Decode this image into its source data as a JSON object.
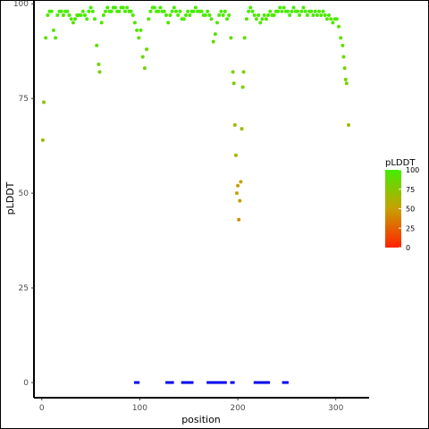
{
  "chart_data": {
    "type": "scatter",
    "xlabel": "position",
    "ylabel": "pLDDT",
    "xlim": [
      -8,
      334
    ],
    "ylim": [
      -4,
      101
    ],
    "x_ticks": [
      0,
      100,
      200,
      300
    ],
    "y_ticks": [
      0,
      25,
      50,
      75,
      100
    ],
    "grid": false,
    "color_scale": {
      "title": "pLDDT",
      "low_color": "#ff2200",
      "mid_color": "#c8a000",
      "high_color": "#44ee00",
      "ticks": [
        0,
        25,
        50,
        75,
        100
      ],
      "placement": "right"
    },
    "marker_color": "#0000ee",
    "series": [
      {
        "points": [
          [
            1,
            64
          ],
          [
            2,
            74
          ],
          [
            4,
            91
          ],
          [
            6,
            97
          ],
          [
            8,
            98
          ],
          [
            10,
            98
          ],
          [
            12,
            93
          ],
          [
            14,
            91
          ],
          [
            16,
            97
          ],
          [
            18,
            98
          ],
          [
            20,
            98
          ],
          [
            22,
            97
          ],
          [
            24,
            98
          ],
          [
            26,
            98
          ],
          [
            28,
            97
          ],
          [
            30,
            96
          ],
          [
            32,
            95
          ],
          [
            34,
            96
          ],
          [
            36,
            97
          ],
          [
            38,
            97
          ],
          [
            40,
            97
          ],
          [
            42,
            98
          ],
          [
            44,
            97
          ],
          [
            46,
            96
          ],
          [
            48,
            98
          ],
          [
            50,
            99
          ],
          [
            52,
            98
          ],
          [
            54,
            96
          ],
          [
            56,
            89
          ],
          [
            58,
            84
          ],
          [
            59,
            82
          ],
          [
            61,
            95
          ],
          [
            63,
            97
          ],
          [
            65,
            98
          ],
          [
            67,
            99
          ],
          [
            69,
            98
          ],
          [
            71,
            98
          ],
          [
            73,
            99
          ],
          [
            75,
            99
          ],
          [
            77,
            98
          ],
          [
            79,
            98
          ],
          [
            81,
            99
          ],
          [
            83,
            99
          ],
          [
            85,
            98
          ],
          [
            87,
            99
          ],
          [
            89,
            98
          ],
          [
            91,
            98
          ],
          [
            93,
            97
          ],
          [
            95,
            95
          ],
          [
            97,
            93
          ],
          [
            99,
            91
          ],
          [
            101,
            93
          ],
          [
            103,
            86
          ],
          [
            105,
            83
          ],
          [
            107,
            88
          ],
          [
            109,
            96
          ],
          [
            111,
            98
          ],
          [
            113,
            99
          ],
          [
            115,
            99
          ],
          [
            117,
            98
          ],
          [
            119,
            98
          ],
          [
            121,
            99
          ],
          [
            123,
            98
          ],
          [
            125,
            98
          ],
          [
            127,
            97
          ],
          [
            129,
            95
          ],
          [
            131,
            97
          ],
          [
            133,
            98
          ],
          [
            135,
            99
          ],
          [
            137,
            98
          ],
          [
            139,
            97
          ],
          [
            141,
            98
          ],
          [
            143,
            96
          ],
          [
            145,
            96
          ],
          [
            147,
            97
          ],
          [
            149,
            98
          ],
          [
            151,
            97
          ],
          [
            153,
            98
          ],
          [
            155,
            98
          ],
          [
            157,
            99
          ],
          [
            159,
            98
          ],
          [
            161,
            98
          ],
          [
            163,
            98
          ],
          [
            165,
            97
          ],
          [
            167,
            97
          ],
          [
            169,
            98
          ],
          [
            171,
            97
          ],
          [
            173,
            96
          ],
          [
            175,
            90
          ],
          [
            177,
            92
          ],
          [
            179,
            95
          ],
          [
            181,
            97
          ],
          [
            183,
            98
          ],
          [
            185,
            97
          ],
          [
            187,
            98
          ],
          [
            189,
            96
          ],
          [
            191,
            97
          ],
          [
            193,
            91
          ],
          [
            195,
            82
          ],
          [
            196,
            79
          ],
          [
            197,
            68
          ],
          [
            198,
            60
          ],
          [
            199,
            50
          ],
          [
            200,
            52
          ],
          [
            201,
            43
          ],
          [
            202,
            48
          ],
          [
            203,
            53
          ],
          [
            204,
            67
          ],
          [
            205,
            78
          ],
          [
            206,
            82
          ],
          [
            207,
            91
          ],
          [
            209,
            96
          ],
          [
            211,
            98
          ],
          [
            213,
            99
          ],
          [
            215,
            98
          ],
          [
            217,
            97
          ],
          [
            219,
            96
          ],
          [
            221,
            97
          ],
          [
            223,
            95
          ],
          [
            225,
            96
          ],
          [
            227,
            97
          ],
          [
            229,
            96
          ],
          [
            231,
            97
          ],
          [
            233,
            98
          ],
          [
            235,
            97
          ],
          [
            237,
            97
          ],
          [
            239,
            98
          ],
          [
            241,
            98
          ],
          [
            243,
            99
          ],
          [
            245,
            98
          ],
          [
            247,
            99
          ],
          [
            249,
            98
          ],
          [
            251,
            98
          ],
          [
            253,
            97
          ],
          [
            255,
            98
          ],
          [
            257,
            99
          ],
          [
            259,
            98
          ],
          [
            261,
            98
          ],
          [
            263,
            97
          ],
          [
            265,
            98
          ],
          [
            267,
            99
          ],
          [
            269,
            98
          ],
          [
            271,
            97
          ],
          [
            273,
            98
          ],
          [
            275,
            98
          ],
          [
            277,
            97
          ],
          [
            279,
            98
          ],
          [
            281,
            97
          ],
          [
            283,
            98
          ],
          [
            285,
            97
          ],
          [
            287,
            98
          ],
          [
            289,
            97
          ],
          [
            291,
            96
          ],
          [
            293,
            97
          ],
          [
            295,
            96
          ],
          [
            297,
            95
          ],
          [
            299,
            96
          ],
          [
            301,
            96
          ],
          [
            303,
            94
          ],
          [
            305,
            91
          ],
          [
            307,
            89
          ],
          [
            308,
            86
          ],
          [
            309,
            83
          ],
          [
            310,
            80
          ],
          [
            311,
            79
          ],
          [
            313,
            68
          ]
        ]
      },
      {
        "name": "",
        "points": [
          [
            96,
            0
          ],
          [
            97,
            0
          ],
          [
            98,
            0
          ],
          [
            128,
            0
          ],
          [
            129,
            0
          ],
          [
            130,
            0
          ],
          [
            131,
            0
          ],
          [
            132,
            0
          ],
          [
            133,
            0
          ],
          [
            144,
            0
          ],
          [
            145,
            0
          ],
          [
            146,
            0
          ],
          [
            147,
            0
          ],
          [
            148,
            0
          ],
          [
            149,
            0
          ],
          [
            150,
            0
          ],
          [
            151,
            0
          ],
          [
            152,
            0
          ],
          [
            153,
            0
          ],
          [
            170,
            0
          ],
          [
            171,
            0
          ],
          [
            172,
            0
          ],
          [
            173,
            0
          ],
          [
            174,
            0
          ],
          [
            175,
            0
          ],
          [
            176,
            0
          ],
          [
            177,
            0
          ],
          [
            178,
            0
          ],
          [
            179,
            0
          ],
          [
            180,
            0
          ],
          [
            181,
            0
          ],
          [
            182,
            0
          ],
          [
            183,
            0
          ],
          [
            184,
            0
          ],
          [
            185,
            0
          ],
          [
            186,
            0
          ],
          [
            187,
            0
          ],
          [
            194,
            0
          ],
          [
            195,
            0
          ],
          [
            218,
            0
          ],
          [
            219,
            0
          ],
          [
            220,
            0
          ],
          [
            221,
            0
          ],
          [
            222,
            0
          ],
          [
            223,
            0
          ],
          [
            224,
            0
          ],
          [
            225,
            0
          ],
          [
            226,
            0
          ],
          [
            227,
            0
          ],
          [
            228,
            0
          ],
          [
            229,
            0
          ],
          [
            230,
            0
          ],
          [
            231,
            0
          ],
          [
            247,
            0
          ],
          [
            248,
            0
          ],
          [
            249,
            0
          ],
          [
            250,
            0
          ]
        ]
      }
    ]
  }
}
